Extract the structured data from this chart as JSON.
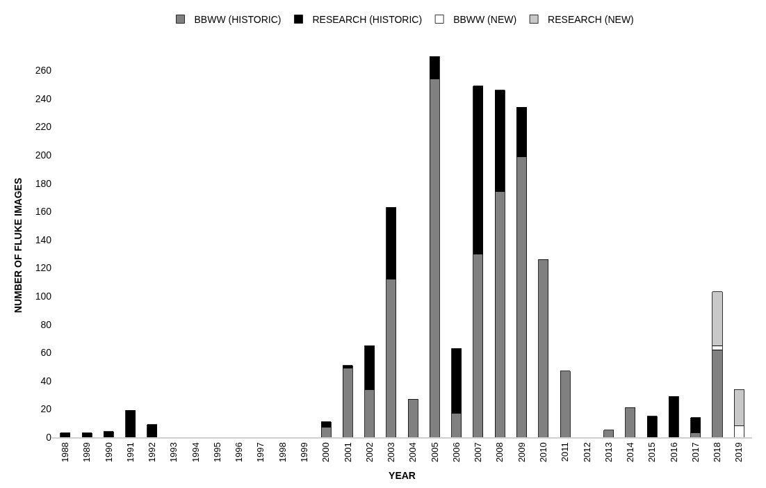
{
  "chart_data": {
    "type": "bar",
    "stacked": true,
    "xlabel": "YEAR",
    "ylabel": "NUMBER OF FLUKE IMAGES",
    "categories": [
      "1988",
      "1989",
      "1990",
      "1991",
      "1992",
      "1993",
      "1994",
      "1995",
      "1996",
      "1997",
      "1998",
      "1999",
      "2000",
      "2001",
      "2002",
      "2003",
      "2004",
      "2005",
      "2006",
      "2007",
      "2008",
      "2009",
      "2010",
      "2011",
      "2012",
      "2013",
      "2014",
      "2015",
      "2016",
      "2017",
      "2018",
      "2019"
    ],
    "series": [
      {
        "name": "BBWW (HISTORIC)",
        "color": "#808080",
        "values": [
          null,
          null,
          null,
          null,
          null,
          null,
          null,
          null,
          null,
          null,
          null,
          null,
          7,
          49,
          34,
          112,
          27,
          254,
          17,
          130,
          174,
          199,
          126,
          47,
          null,
          5,
          21,
          null,
          null,
          3,
          62,
          null
        ]
      },
      {
        "name": "RESEARCH (HISTORIC)",
        "color": "#000000",
        "values": [
          3,
          3,
          4,
          19,
          9,
          null,
          null,
          null,
          null,
          null,
          null,
          null,
          4,
          2,
          31,
          51,
          null,
          16,
          46,
          119,
          72,
          35,
          null,
          null,
          null,
          null,
          null,
          15,
          29,
          11,
          null,
          null
        ]
      },
      {
        "name": "BBWW (NEW)",
        "color": "#ffffff",
        "values": [
          null,
          null,
          null,
          null,
          null,
          null,
          null,
          null,
          null,
          null,
          null,
          null,
          null,
          null,
          null,
          null,
          null,
          null,
          null,
          null,
          null,
          null,
          null,
          null,
          null,
          null,
          null,
          null,
          null,
          null,
          3,
          8
        ]
      },
      {
        "name": "RESEARCH (NEW)",
        "color": "#c8c8c8",
        "values": [
          null,
          null,
          null,
          null,
          null,
          null,
          null,
          null,
          null,
          null,
          null,
          null,
          null,
          null,
          null,
          null,
          null,
          null,
          null,
          null,
          null,
          null,
          null,
          null,
          null,
          null,
          null,
          null,
          null,
          null,
          38,
          26
        ]
      }
    ],
    "ylim": [
      0,
      272
    ],
    "yticks": [
      0,
      20,
      40,
      60,
      80,
      100,
      120,
      140,
      160,
      180,
      200,
      220,
      240,
      260
    ],
    "legend": "top"
  }
}
